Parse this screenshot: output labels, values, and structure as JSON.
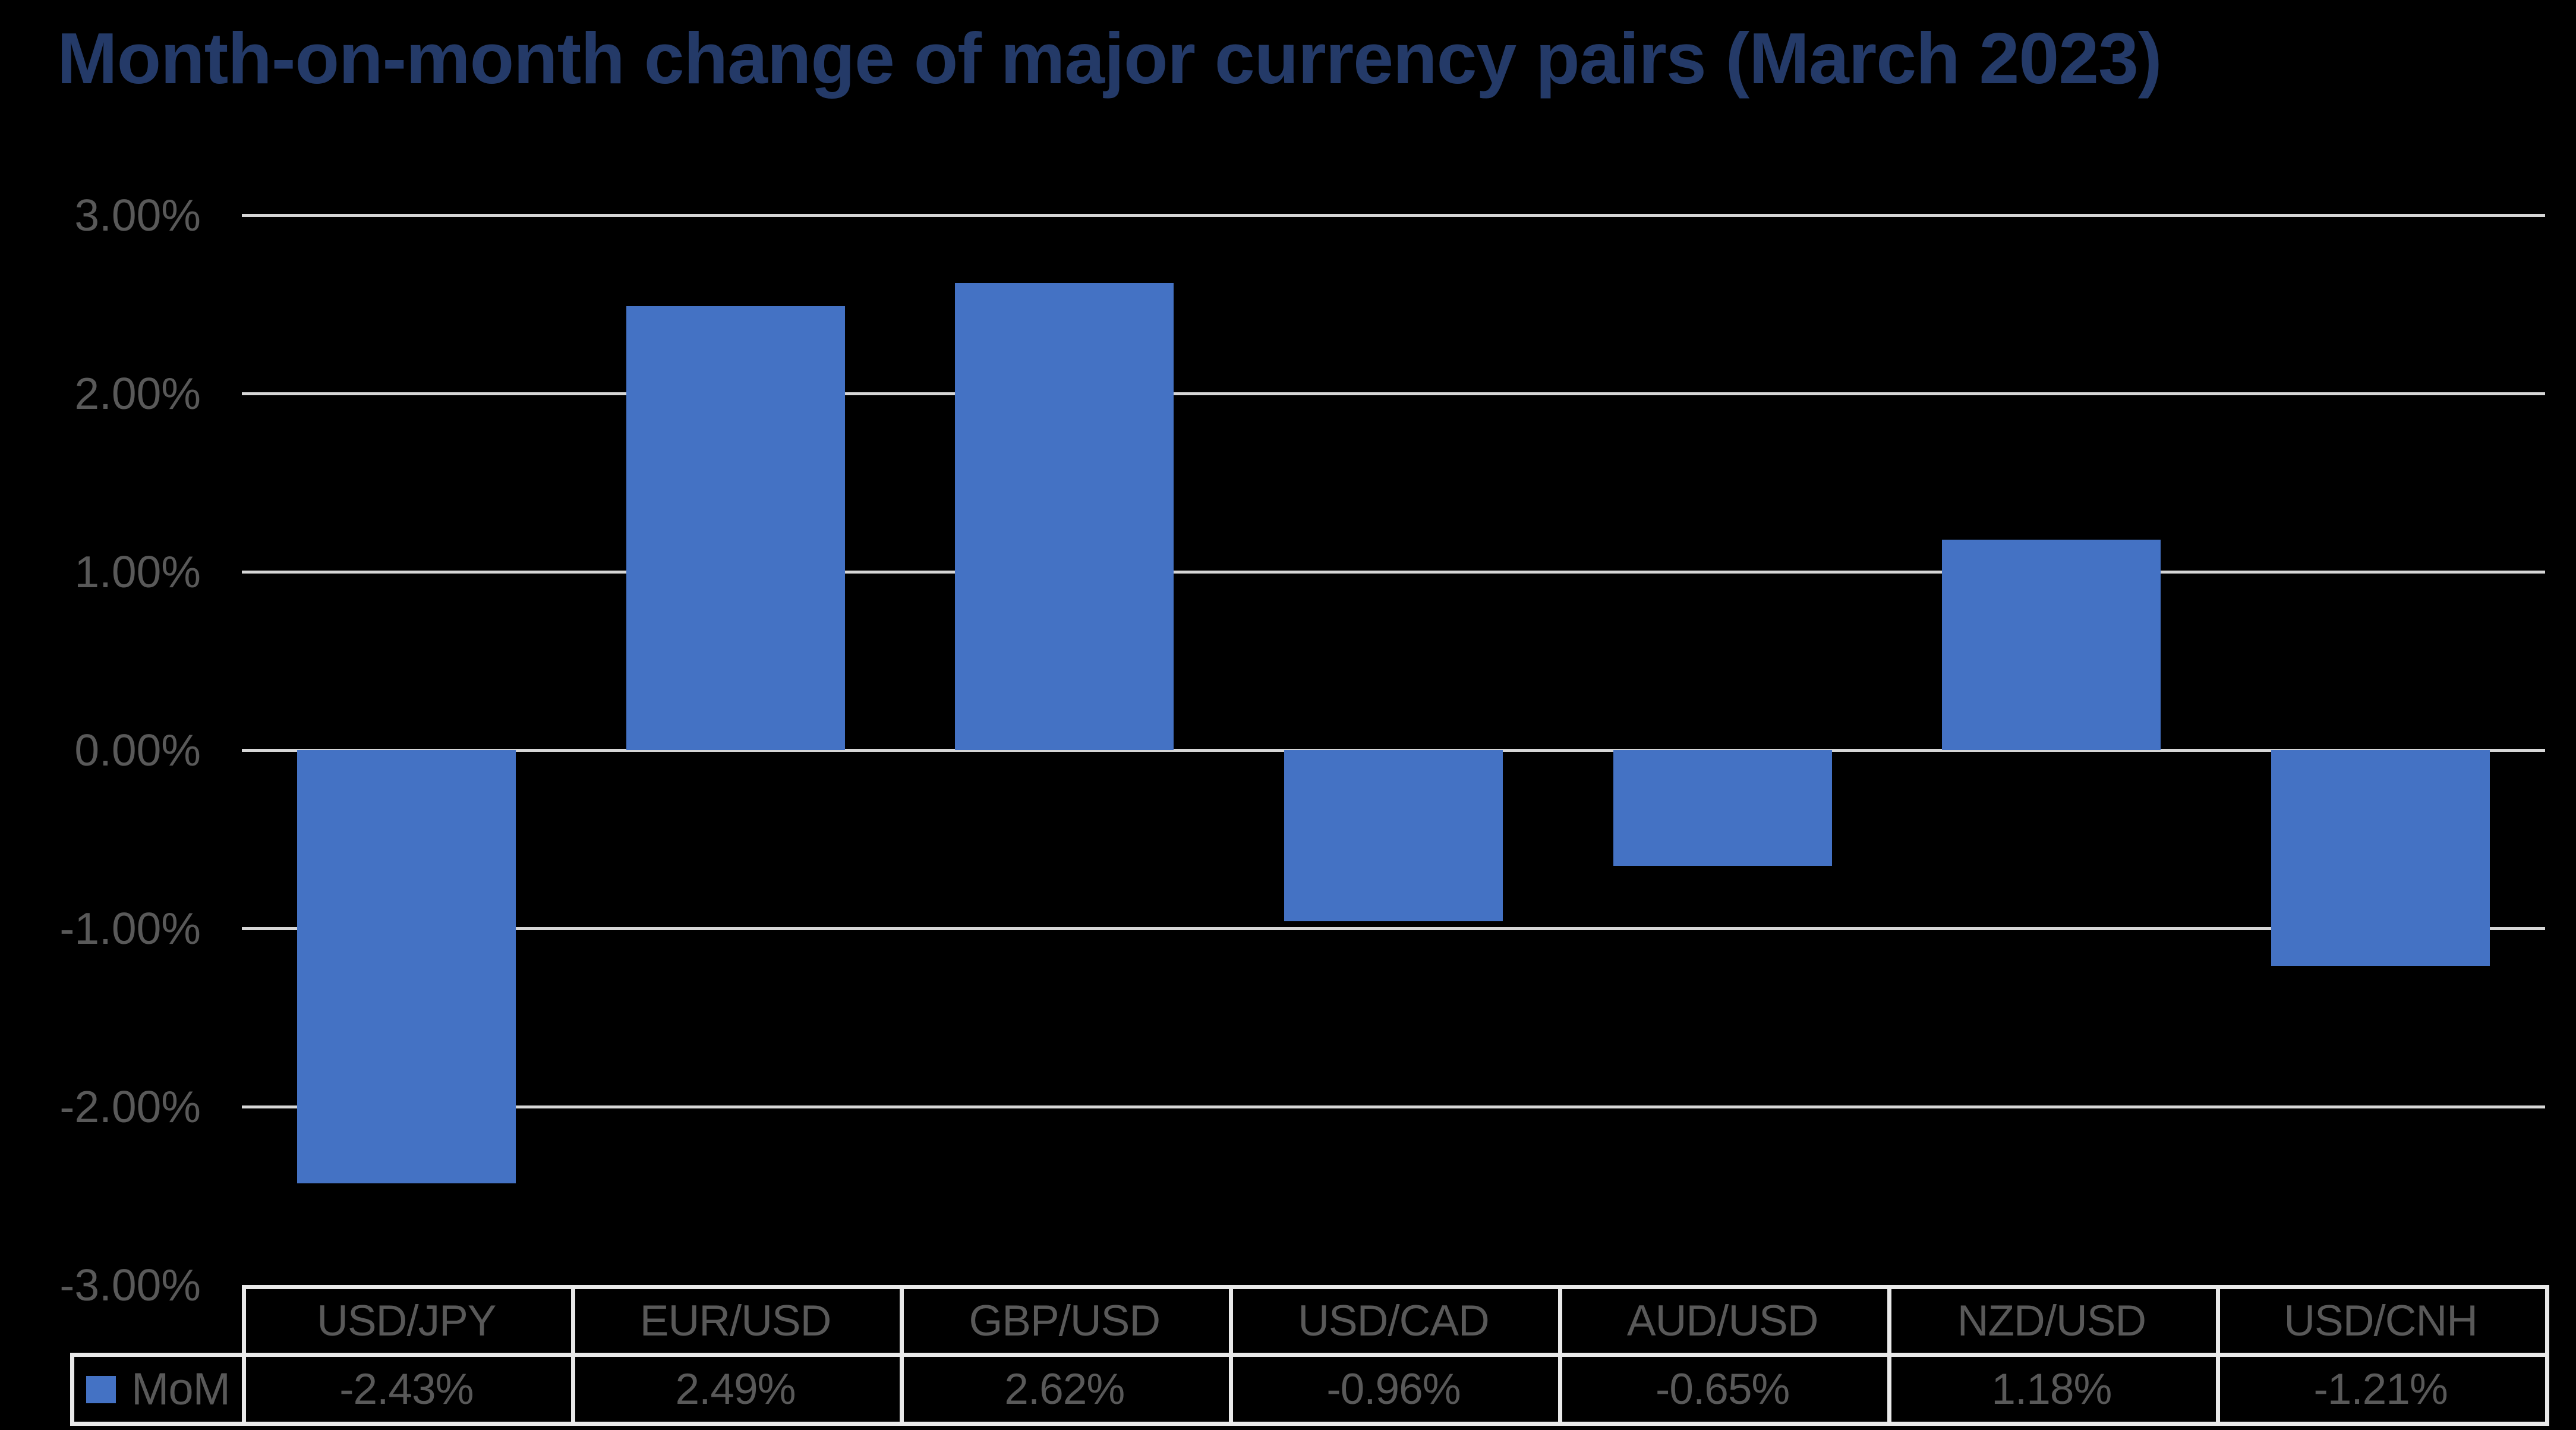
{
  "title": "Month-on-month change of major currency pairs (March 2023)",
  "colors": {
    "background": "#000000",
    "title_text": "#243A68",
    "bar": "#4472C4",
    "gridline": "#D6D6D6",
    "table_border": "#E9E9E9",
    "axis_text": "#595959",
    "table_text": "#595959"
  },
  "chart_data": {
    "type": "bar",
    "title": "Month-on-month change of major currency pairs (March 2023)",
    "categories": [
      "USD/JPY",
      "EUR/USD",
      "GBP/USD",
      "USD/CAD",
      "AUD/USD",
      "NZD/USD",
      "USD/CNH"
    ],
    "series": [
      {
        "name": "MoM",
        "values": [
          -2.43,
          2.49,
          2.62,
          -0.96,
          -0.65,
          1.18,
          -1.21
        ],
        "display_values": [
          "-2.43%",
          "2.49%",
          "2.62%",
          "-0.96%",
          "-0.65%",
          "1.18%",
          "-1.21%"
        ]
      }
    ],
    "y_ticks": [
      "3.00%",
      "2.00%",
      "1.00%",
      "0.00%",
      "-1.00%",
      "-2.00%",
      "-3.00%"
    ],
    "ylim": [
      -3,
      3
    ],
    "xlabel": "",
    "ylabel": "",
    "grid": true,
    "legend_position": "bottom-left-table",
    "data_table_shown": true
  }
}
